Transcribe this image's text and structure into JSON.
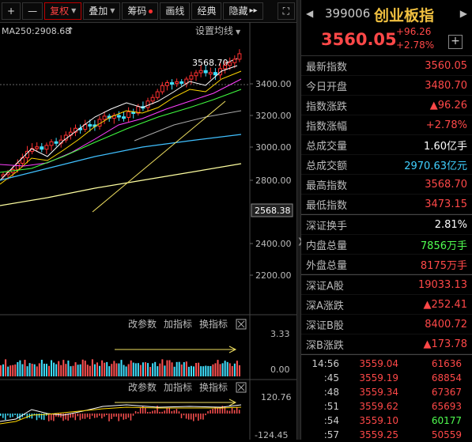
{
  "toolbar": {
    "plus_label": "+",
    "minus_label": "—",
    "fuquan_label": "复权",
    "diejia_label": "叠加",
    "chouma_label": "筹码",
    "huaxian_label": "画线",
    "jingdian_label": "经典",
    "yincang_label": "隐藏",
    "more_label": "▸▸",
    "expand_label": "⛶"
  },
  "main_chart": {
    "ma_label": "MA250:2908.68",
    "settings_label": "设置均线",
    "high_label": "3568.70",
    "current_price_tag": "2568.38",
    "y_ticks": [
      "3400.00",
      "3200.00",
      "3000.00",
      "2800.00",
      "2400.00",
      "2200.00"
    ]
  },
  "vol_panel": {
    "btn_params": "改参数",
    "btn_add": "加指标",
    "btn_switch": "换指标",
    "close_icon": "close-icon",
    "y_top": "3.33",
    "y_bottom": "0.00"
  },
  "macd_panel": {
    "btn_params": "改参数",
    "btn_add": "加指标",
    "btn_switch": "换指标",
    "close_icon": "close-icon",
    "y_top": "120.76",
    "y_bottom": "-124.45"
  },
  "quote": {
    "code": "399006",
    "name": "创业板指",
    "price": "3560.05",
    "change": "+96.26",
    "change_pct": "+2.78%",
    "rows1": [
      {
        "label": "最新指数",
        "value": "3560.05",
        "color": "#ff4848"
      },
      {
        "label": "今日开盘",
        "value": "3480.70",
        "color": "#ff4848"
      },
      {
        "label": "指数涨跌",
        "value": "▲96.26",
        "color": "#ff4848"
      },
      {
        "label": "指数涨幅",
        "value": "+2.78%",
        "color": "#ff4848"
      },
      {
        "label": "总成交量",
        "value": "1.60亿手",
        "color": "#ffffff"
      },
      {
        "label": "总成交额",
        "value": "2970.63亿元",
        "color": "#40d0ff"
      },
      {
        "label": "最高指数",
        "value": "3568.70",
        "color": "#ff4848"
      },
      {
        "label": "最低指数",
        "value": "3473.15",
        "color": "#ff4848"
      }
    ],
    "rows2": [
      {
        "label": "深证换手",
        "value": "2.81%",
        "color": "#ffffff"
      },
      {
        "label": "内盘总量",
        "value": "7856万手",
        "color": "#50ff50"
      },
      {
        "label": "外盘总量",
        "value": "8175万手",
        "color": "#ff4848"
      }
    ],
    "rows3": [
      {
        "label": "深证A股",
        "value": "19033.13",
        "color": "#ff4848"
      },
      {
        "label": "深A涨跌",
        "value": "▲252.41",
        "color": "#ff4848"
      },
      {
        "label": "深证B股",
        "value": "8400.72",
        "color": "#ff4848"
      },
      {
        "label": "深B涨跌",
        "value": "▲173.78",
        "color": "#ff4848"
      }
    ],
    "ticks": [
      {
        "time": "14:56",
        "price": "3559.04",
        "vol": "61636",
        "vcolor": "#ff4848"
      },
      {
        "time": ":45",
        "price": "3559.19",
        "vol": "68854",
        "vcolor": "#ff4848"
      },
      {
        "time": ":48",
        "price": "3559.34",
        "vol": "67367",
        "vcolor": "#ff4848"
      },
      {
        "time": ":51",
        "price": "3559.62",
        "vol": "65693",
        "vcolor": "#ff4848"
      },
      {
        "time": ":54",
        "price": "3559.10",
        "vol": "60177",
        "vcolor": "#50ff50"
      },
      {
        "time": ":57",
        "price": "3559.25",
        "vol": "50559",
        "vcolor": "#ff4848"
      }
    ]
  }
}
